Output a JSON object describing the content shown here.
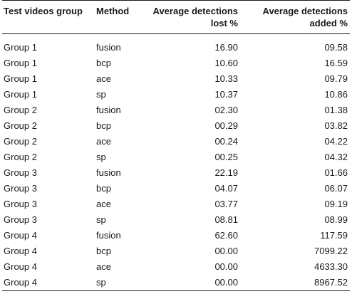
{
  "table": {
    "headers": {
      "group": "Test videos group",
      "method": "Method",
      "lost_line1": "Average detections",
      "lost_line2": "lost %",
      "added_line1": "Average detections",
      "added_line2": "added %"
    },
    "rows": [
      {
        "group": "Group 1",
        "method": "fusion",
        "lost": "16.90",
        "added": "09.58"
      },
      {
        "group": "Group 1",
        "method": "bcp",
        "lost": "10.60",
        "added": "16.59"
      },
      {
        "group": "Group 1",
        "method": "ace",
        "lost": "10.33",
        "added": "09.79"
      },
      {
        "group": "Group 1",
        "method": "sp",
        "lost": "10.37",
        "added": "10.86"
      },
      {
        "group": "Group 2",
        "method": "fusion",
        "lost": "02.30",
        "added": "01.38"
      },
      {
        "group": "Group 2",
        "method": "bcp",
        "lost": "00.29",
        "added": "03.82"
      },
      {
        "group": "Group 2",
        "method": "ace",
        "lost": "00.24",
        "added": "04.22"
      },
      {
        "group": "Group 2",
        "method": "sp",
        "lost": "00.25",
        "added": "04.32"
      },
      {
        "group": "Group 3",
        "method": "fusion",
        "lost": "22.19",
        "added": "01.66"
      },
      {
        "group": "Group 3",
        "method": "bcp",
        "lost": "04.07",
        "added": "06.07"
      },
      {
        "group": "Group 3",
        "method": "ace",
        "lost": "03.77",
        "added": "09.19"
      },
      {
        "group": "Group 3",
        "method": "sp",
        "lost": "08.81",
        "added": "08.99"
      },
      {
        "group": "Group 4",
        "method": "fusion",
        "lost": "62.60",
        "added": "117.59"
      },
      {
        "group": "Group 4",
        "method": "bcp",
        "lost": "00.00",
        "added": "7099.22"
      },
      {
        "group": "Group 4",
        "method": "ace",
        "lost": "00.00",
        "added": "4633.30"
      },
      {
        "group": "Group 4",
        "method": "sp",
        "lost": "00.00",
        "added": "8967.52"
      }
    ]
  }
}
